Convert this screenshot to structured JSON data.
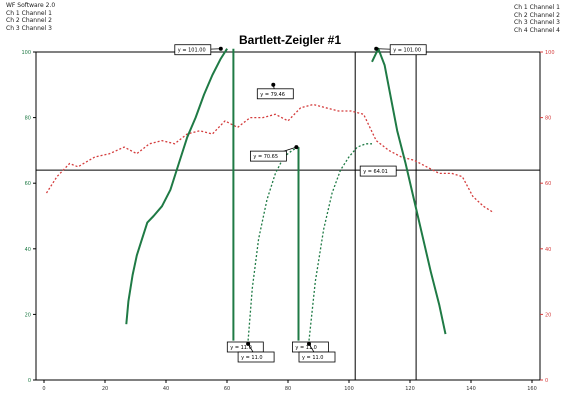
{
  "header_left": [
    "WF Software 2.0",
    "Ch 1 Channel 1",
    "Ch 2 Channel 2",
    "Ch 3 Channel 3"
  ],
  "header_right": [
    "Ch 1 Channel 1",
    "Ch 2 Channel 2",
    "Ch 3 Channel 3",
    "Ch 4 Channel 4"
  ],
  "colors": {
    "green_series": "#1f7a45",
    "red_series": "#d43c3c",
    "axis": "#000000",
    "marker_box_border": "#000000"
  },
  "chart_data": {
    "type": "line",
    "title": "Bartlett-Zeigler #1",
    "xlabel": "",
    "ylabel_left": "",
    "ylabel_right": "",
    "xlim": [
      0,
      240
    ],
    "ylim_left": [
      0,
      100
    ],
    "ylim_right": [
      0,
      100
    ],
    "x_ticks": [
      "0",
      "20",
      "40",
      "60",
      "80",
      "100",
      "120",
      "140",
      "160"
    ],
    "y_ticks_left": [
      "0",
      "20",
      "40",
      "60",
      "80",
      "100"
    ],
    "y_ticks_right": [
      "0",
      "20",
      "40",
      "60",
      "80",
      "100"
    ],
    "grid": false,
    "reference_lines": {
      "vertical_x": [
        152,
        181
      ],
      "horizontal_y": 64
    },
    "series": [
      {
        "axis": "right",
        "style": "dotted",
        "x": [
          5,
          10,
          16,
          20,
          28,
          35,
          42,
          48,
          54,
          60,
          66,
          72,
          78,
          84,
          90,
          96,
          102,
          108,
          114,
          120,
          126,
          132,
          138,
          144,
          150,
          156,
          162,
          168,
          174,
          180,
          186,
          192,
          198,
          203,
          208,
          213,
          218
        ],
        "y": [
          57,
          62,
          66,
          65,
          68,
          69,
          71,
          69,
          72,
          73,
          72,
          75,
          76,
          75,
          79,
          77,
          80,
          80,
          81,
          79,
          83,
          84,
          83,
          82,
          82,
          81,
          73,
          70,
          68,
          67,
          65,
          63,
          63,
          62,
          56,
          53,
          51
        ]
      },
      {
        "axis": "left",
        "style": "solid",
        "x": [
          43,
          44,
          46,
          48,
          50,
          53,
          56,
          60,
          64,
          68,
          72,
          76,
          80,
          84,
          88,
          91
        ],
        "y": [
          17,
          24,
          32,
          38,
          42,
          48,
          50,
          53,
          58,
          66,
          74,
          80,
          87,
          93,
          98,
          101
        ]
      },
      {
        "axis": "left",
        "style": "solid",
        "x": [
          94,
          94,
          94
        ],
        "y": [
          101,
          60,
          12
        ]
      },
      {
        "axis": "left",
        "style": "dotted",
        "x": [
          101,
          103,
          106,
          110,
          114,
          118,
          122,
          125
        ],
        "y": [
          12,
          28,
          43,
          55,
          63,
          68,
          70,
          71
        ]
      },
      {
        "axis": "left",
        "style": "solid",
        "x": [
          125,
          125
        ],
        "y": [
          71,
          12
        ]
      },
      {
        "axis": "left",
        "style": "dotted",
        "x": [
          130,
          133,
          137,
          141,
          145,
          149,
          153,
          157,
          160
        ],
        "y": [
          12,
          30,
          46,
          57,
          64,
          68,
          71,
          72,
          72
        ]
      },
      {
        "axis": "left",
        "style": "solid",
        "x": [
          160,
          163,
          166,
          169,
          172,
          176,
          180,
          184,
          188,
          192,
          195
        ],
        "y": [
          97,
          101,
          96,
          86,
          76,
          66,
          55,
          44,
          33,
          23,
          14
        ]
      }
    ],
    "annotations": [
      {
        "text": "y = 101.00",
        "x": 88,
        "y": 101
      },
      {
        "text": "y = 79.46",
        "x": 113,
        "y": 90
      },
      {
        "text": "y = 101.00",
        "x": 162,
        "y": 101
      },
      {
        "text": "y = 70.65",
        "x": 124,
        "y": 71
      },
      {
        "text": "y = 64.01",
        "x": 162,
        "y": 64
      },
      {
        "text": "y = 11.0",
        "x": 93,
        "y": 11
      },
      {
        "text": "y = 11.0",
        "x": 101,
        "y": 11
      },
      {
        "text": "y = 11.0",
        "x": 124,
        "y": 11
      },
      {
        "text": "y = 11.0",
        "x": 130,
        "y": 11
      }
    ]
  }
}
